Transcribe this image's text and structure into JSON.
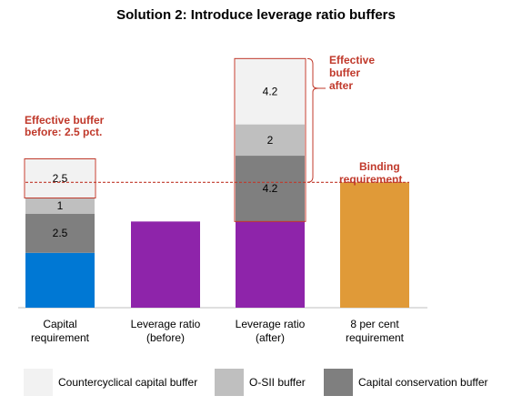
{
  "title": "Solution 2: Introduce leverage ratio buffers",
  "chart_data": {
    "type": "bar",
    "stacked": true,
    "categories": [
      "Capital\nrequirement",
      "Leverage ratio\n(before)",
      "Leverage ratio\n(after)",
      "8 per cent\nrequirement"
    ],
    "series": [
      {
        "name": "",
        "color": "#0078d4",
        "values": [
          3.5,
          5.5,
          5.5,
          0
        ]
      },
      {
        "name": "Capital conservation buffer",
        "color": "#7f7f7f",
        "values": [
          2.5,
          0,
          4.2,
          0
        ]
      },
      {
        "name": "O-SII buffer",
        "color": "#bfbfbf",
        "values": [
          1,
          0,
          2,
          0
        ]
      },
      {
        "name": "Countercyclical capital buffer",
        "color": "#f2f2f2",
        "values": [
          2.5,
          0,
          4.2,
          0
        ]
      },
      {
        "name": "",
        "color": "#e09a38",
        "values": [
          0,
          0,
          0,
          8
        ]
      }
    ],
    "bar_colors_base": [
      "#0078d4",
      "#8e24aa",
      "#8e24aa",
      "#e09a38"
    ],
    "segment_labels": [
      [
        "",
        "2.5",
        "1",
        "2.5"
      ],
      [],
      [
        "",
        "4.2",
        "2",
        "4.2"
      ],
      []
    ],
    "binding_level": 8,
    "ylim": [
      0,
      16.5
    ]
  },
  "annotations": {
    "effective_before": "Effective buffer before: 2.5 pct.",
    "effective_after_1": "Effective",
    "effective_after_2": "buffer",
    "effective_after_3": "after",
    "binding_1": "Binding",
    "binding_2": "requirement"
  },
  "legend": [
    {
      "label": "Countercyclical capital buffer",
      "color": "#f2f2f2"
    },
    {
      "label": "O-SII buffer",
      "color": "#bfbfbf"
    },
    {
      "label": "Capital conservation buffer",
      "color": "#7f7f7f"
    }
  ],
  "colors": {
    "annotation": "#c0392b",
    "purple": "#8e24aa",
    "blue": "#0078d4",
    "orange": "#e09a38"
  }
}
